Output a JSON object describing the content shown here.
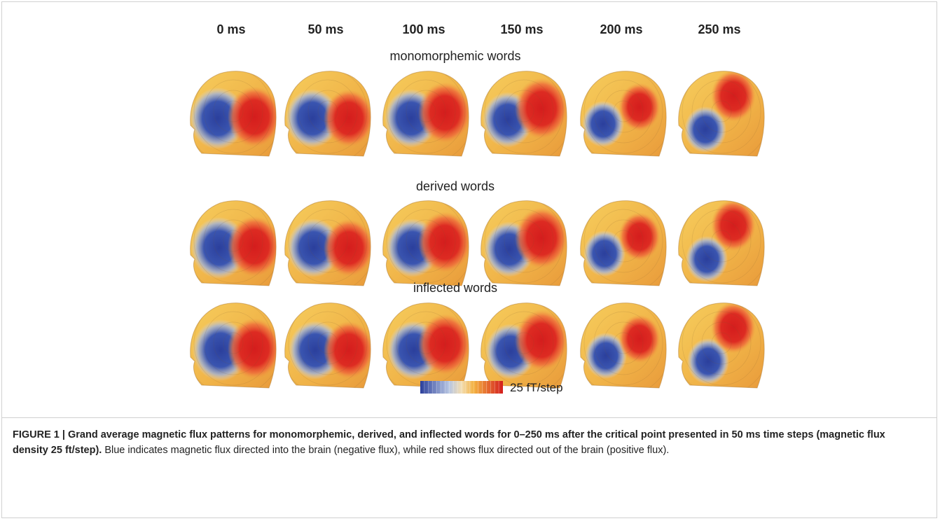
{
  "figure": {
    "columns": [
      "0 ms",
      "50 ms",
      "100 ms",
      "150 ms",
      "200 ms",
      "250 ms"
    ],
    "rows": [
      "monomorphemic words",
      "derived words",
      "inflected words"
    ],
    "colorbar_label": "25 fT/step"
  },
  "caption": {
    "title": "FIGURE 1 | Grand average magnetic flux patterns for monomorphemic, derived, and inflected words for 0–250 ms after the critical point presented in 50 ms time steps (magnetic flux density 25 ft/step).",
    "body": "Blue indicates magnetic flux directed into the brain (negative flux), while red shows flux directed out of the brain (positive flux)."
  }
}
